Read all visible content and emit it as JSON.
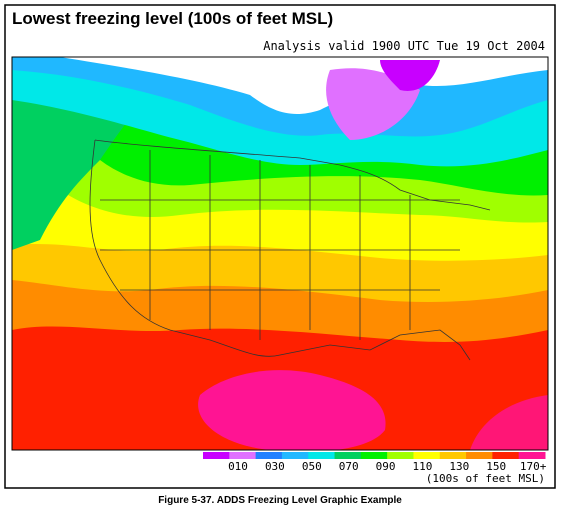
{
  "header": {
    "title": "Lowest freezing level (100s of feet MSL)",
    "subtitle": "Analysis valid 1900 UTC Tue 19 Oct 2004"
  },
  "legend": {
    "labels": [
      "010",
      "030",
      "050",
      "070",
      "090",
      "110",
      "130",
      "150",
      "170+"
    ],
    "unit": "(100s of feet MSL)",
    "colors": [
      "#c800ff",
      "#e070ff",
      "#2080ff",
      "#20b8ff",
      "#00e8e8",
      "#00d060",
      "#00f000",
      "#a0ff00",
      "#ffff00",
      "#ffc800",
      "#ff8c00",
      "#ff2000",
      "#ff1493"
    ]
  },
  "caption": "Figure 5-37.  ADDS Freezing Level Graphic Example"
}
